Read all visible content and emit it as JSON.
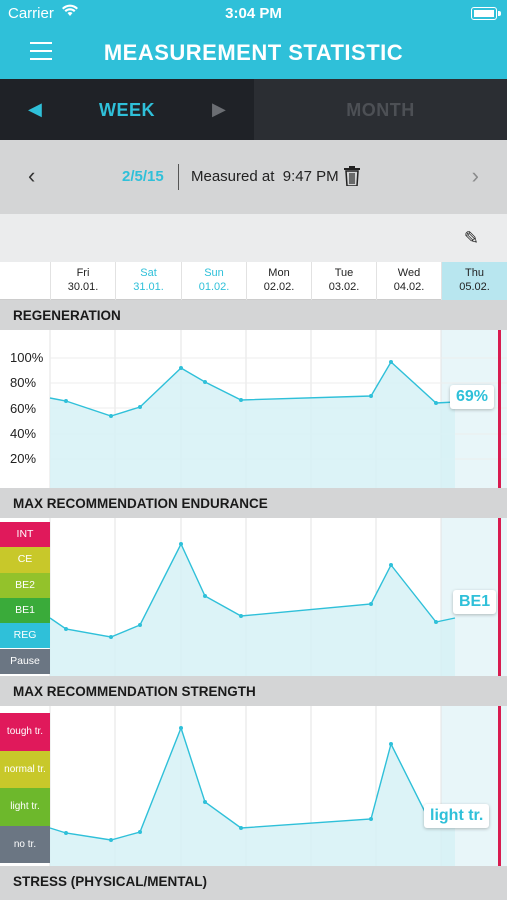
{
  "status_bar": {
    "carrier": "Carrier",
    "time": "3:04 PM"
  },
  "nav": {
    "title": "MEASUREMENT STATISTIC"
  },
  "tabs": {
    "week": "WEEK",
    "month": "MONTH",
    "active": "WEEK"
  },
  "date_bar": {
    "date": "2/5/15",
    "measured_label": "Measured at",
    "measured_time": "9:47 PM"
  },
  "days": [
    {
      "name": "Fri",
      "date": "30.01.",
      "weekend": false,
      "selected": false
    },
    {
      "name": "Sat",
      "date": "31.01.",
      "weekend": true,
      "selected": false
    },
    {
      "name": "Sun",
      "date": "01.02.",
      "weekend": true,
      "selected": false
    },
    {
      "name": "Mon",
      "date": "02.02.",
      "weekend": false,
      "selected": false
    },
    {
      "name": "Tue",
      "date": "03.02.",
      "weekend": false,
      "selected": false
    },
    {
      "name": "Wed",
      "date": "04.02.",
      "weekend": false,
      "selected": false
    },
    {
      "name": "Thu",
      "date": "05.02.",
      "weekend": false,
      "selected": true
    }
  ],
  "colors": {
    "accent": "#2fc0d9",
    "fill": "#d6f1f6",
    "marker": "#d81b4f"
  },
  "sections": {
    "regeneration": {
      "title": "REGENERATION",
      "y_labels": [
        "100%",
        "80%",
        "60%",
        "40%",
        "20%"
      ],
      "current": "69%",
      "values": [
        68,
        66,
        54,
        61,
        92,
        81,
        67,
        70,
        97,
        64,
        65
      ]
    },
    "endurance": {
      "title": "MAX RECOMMENDATION ENDURANCE",
      "levels": [
        {
          "label": "INT",
          "color": "#e0195b"
        },
        {
          "label": "CE",
          "color": "#c8c82a"
        },
        {
          "label": "BE2",
          "color": "#93c22b"
        },
        {
          "label": "BE1",
          "color": "#3aab3a"
        },
        {
          "label": "REG",
          "color": "#2fc0d9"
        },
        {
          "label": "Pause",
          "color": "#6b7683"
        }
      ],
      "current": "BE1"
    },
    "strength": {
      "title": "MAX RECOMMENDATION STRENGTH",
      "levels": [
        {
          "label": "tough tr.",
          "color": "#e0195b"
        },
        {
          "label": "normal tr.",
          "color": "#c8c82a"
        },
        {
          "label": "light tr.",
          "color": "#6db82c"
        },
        {
          "label": "no tr.",
          "color": "#6b7683"
        }
      ],
      "current": "light tr."
    },
    "stress": {
      "title": "STRESS (PHYSICAL/MENTAL)"
    }
  }
}
